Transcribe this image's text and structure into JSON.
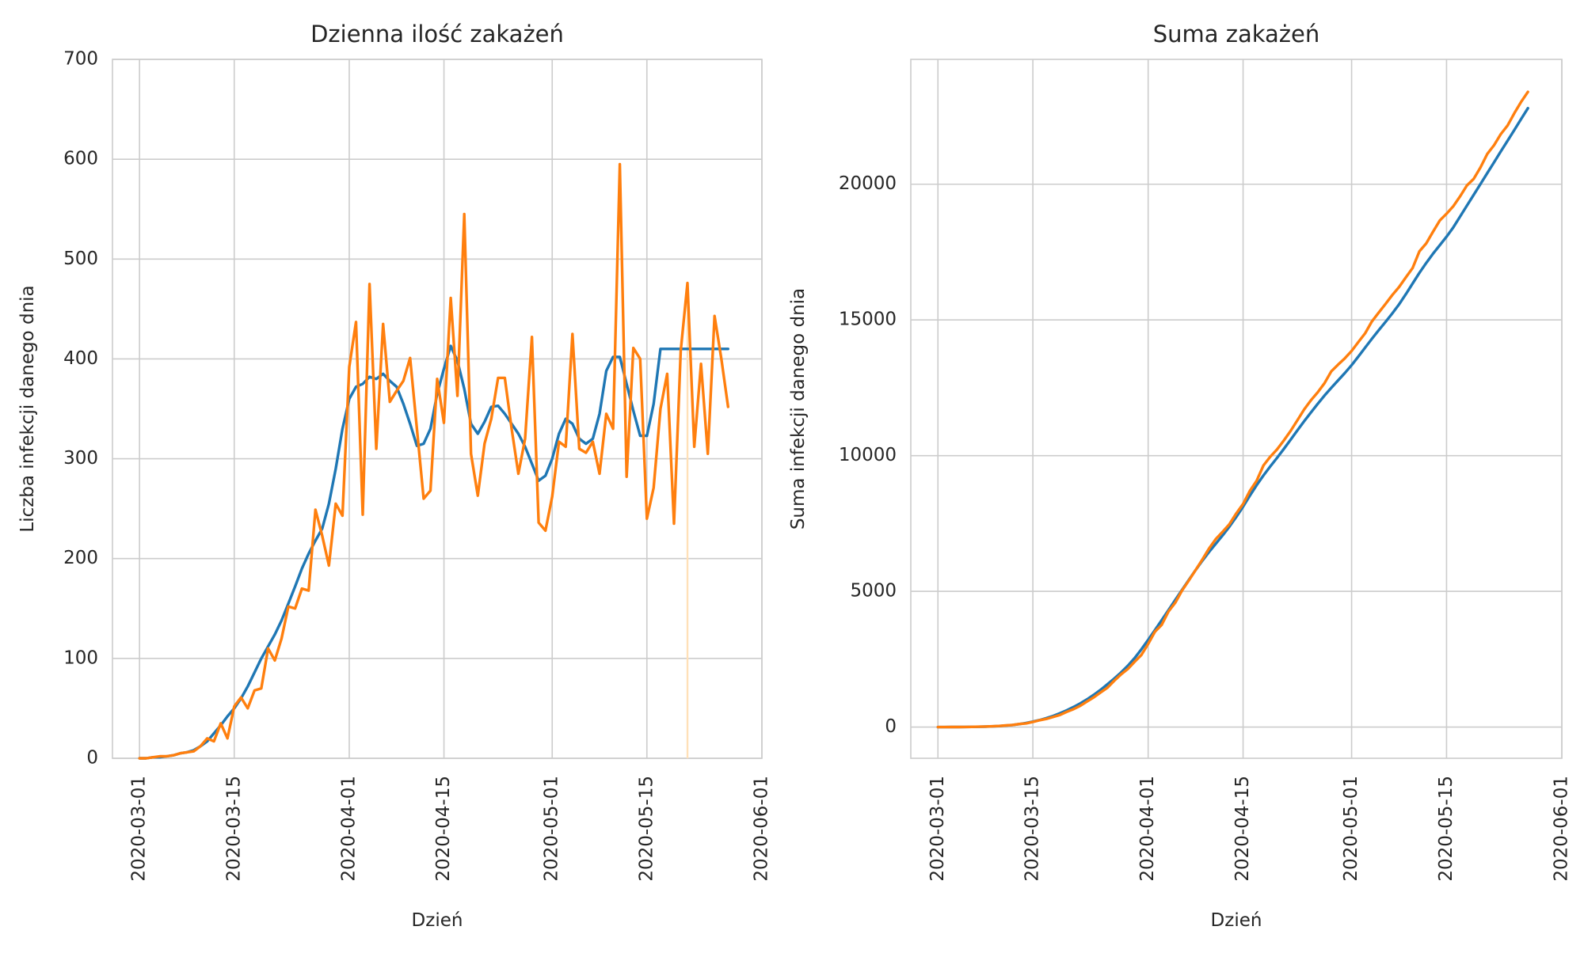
{
  "colors": {
    "series_1": "#1f77b4",
    "series_2": "#ff7f0e",
    "grid": "#cccccc",
    "text": "#262626",
    "marker": "#ffe0b8"
  },
  "chart_data": [
    {
      "type": "line",
      "title": "Dzienna ilość zakażeń",
      "xlabel": "Dzień",
      "ylabel": "Liczba infekcji danego dnia",
      "x_start": "2020-03-01",
      "x_end": "2020-05-27",
      "xlim": [
        "2020-02-26",
        "2020-06-01"
      ],
      "ylim": [
        0,
        700
      ],
      "xticks": [
        "2020-03-01",
        "2020-03-15",
        "2020-04-01",
        "2020-04-15",
        "2020-05-01",
        "2020-05-15",
        "2020-06-01"
      ],
      "yticks": [
        0,
        100,
        200,
        300,
        400,
        500,
        600,
        700
      ],
      "grid": true,
      "vertical_marker": {
        "date": "2020-05-21",
        "y_max": 470
      },
      "series": [
        {
          "values": [
            0,
            0,
            1,
            1,
            2,
            3,
            5,
            6,
            8,
            12,
            17,
            25,
            33,
            42,
            50,
            60,
            72,
            86,
            100,
            112,
            124,
            138,
            155,
            172,
            190,
            205,
            218,
            230,
            255,
            290,
            330,
            360,
            372,
            375,
            382,
            380,
            385,
            378,
            372,
            355,
            335,
            313,
            315,
            330,
            365,
            390,
            413,
            398,
            370,
            335,
            325,
            337,
            352,
            353,
            345,
            335,
            325,
            312,
            295,
            278,
            283,
            300,
            325,
            340,
            335,
            320,
            315,
            320,
            345,
            388,
            402,
            402,
            375,
            348,
            323,
            323,
            355,
            410,
            410,
            410,
            410,
            410,
            410,
            410,
            410,
            410,
            410,
            410
          ]
        },
        {
          "values": [
            0,
            0,
            1,
            2,
            2,
            3,
            5,
            6,
            7,
            12,
            20,
            17,
            35,
            20,
            52,
            61,
            50,
            68,
            70,
            110,
            98,
            120,
            152,
            150,
            170,
            168,
            249,
            223,
            193,
            255,
            243,
            392,
            437,
            244,
            475,
            310,
            435,
            357,
            368,
            378,
            401,
            330,
            260,
            268,
            380,
            336,
            461,
            363,
            545,
            305,
            263,
            315,
            340,
            381,
            381,
            330,
            285,
            320,
            422,
            236,
            228,
            262,
            317,
            312,
            425,
            310,
            306,
            317,
            285,
            345,
            330,
            595,
            282,
            411,
            400,
            240,
            271,
            350,
            385,
            235,
            408,
            476,
            312,
            395,
            305,
            443,
            400,
            352
          ]
        }
      ]
    },
    {
      "type": "line",
      "title": "Suma zakażeń",
      "xlabel": "Dzień",
      "ylabel": "Suma infekcji danego dnia",
      "x_start": "2020-03-01",
      "x_end": "2020-05-27",
      "xlim": [
        "2020-02-26",
        "2020-06-01"
      ],
      "ylim": [
        -1150,
        24600
      ],
      "xticks": [
        "2020-03-01",
        "2020-03-15",
        "2020-04-01",
        "2020-04-15",
        "2020-05-01",
        "2020-05-15",
        "2020-06-01"
      ],
      "yticks": [
        0,
        5000,
        10000,
        15000,
        20000
      ],
      "grid": true,
      "series": [
        {
          "cumulative_of": 0,
          "target_last": 22800
        },
        {
          "cumulative_of": 1,
          "target_last": 23400
        }
      ]
    }
  ]
}
